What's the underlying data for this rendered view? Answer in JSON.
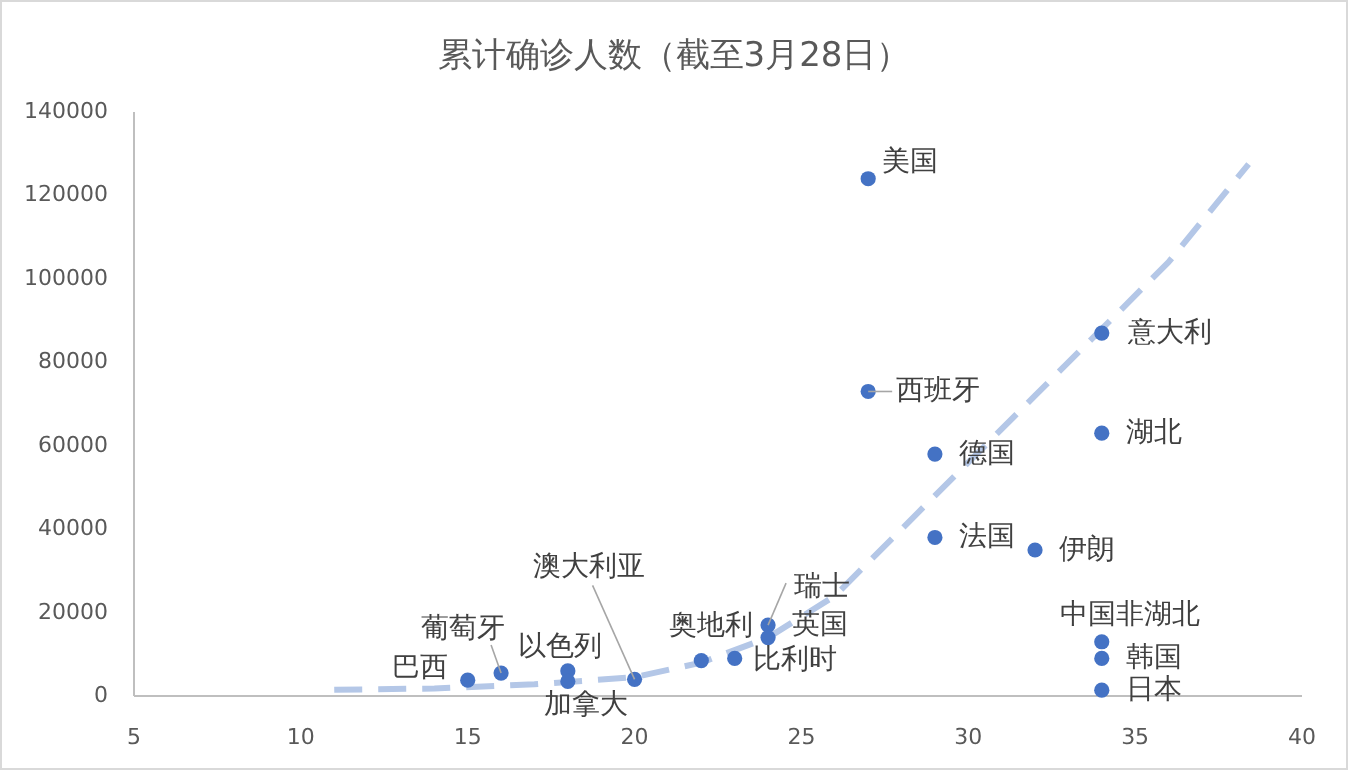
{
  "chart_data": {
    "type": "scatter",
    "title": "累计确诊人数（截至3月28日）",
    "xlim": [
      5,
      40
    ],
    "xticks": [
      5,
      10,
      15,
      20,
      25,
      30,
      35,
      40
    ],
    "ylim": [
      0,
      140000
    ],
    "yticks": [
      0,
      20000,
      40000,
      60000,
      80000,
      100000,
      120000,
      140000
    ],
    "series": [
      {
        "type": "scatter",
        "color": "#4472c4",
        "marker": "circle",
        "x": [
          27,
          27,
          29,
          29,
          32,
          34,
          34,
          34,
          34,
          34,
          24,
          24,
          23,
          22,
          20,
          18,
          18,
          16,
          15
        ],
        "values": [
          124000,
          73000,
          58000,
          38000,
          35000,
          87000,
          63000,
          13000,
          9000,
          1400,
          17000,
          14000,
          9000,
          8500,
          4000,
          6000,
          3500,
          5500,
          3800
        ]
      },
      {
        "type": "line",
        "color": "#b4c7e7",
        "line_style": "dashed",
        "x": [
          11,
          14,
          17,
          20,
          22,
          24,
          26,
          28,
          30,
          32,
          34,
          36,
          38.4
        ],
        "values": [
          1500,
          1800,
          2800,
          4500,
          8000,
          14000,
          24000,
          40000,
          56000,
          72000,
          88000,
          104000,
          127500
        ]
      }
    ],
    "annotations": [
      {
        "text": "美国",
        "x": 27,
        "y": 124000
      },
      {
        "text": "西班牙",
        "x": 27,
        "y": 73000
      },
      {
        "text": "德国",
        "x": 29,
        "y": 58000
      },
      {
        "text": "法国",
        "x": 29,
        "y": 38000
      },
      {
        "text": "伊朗",
        "x": 32,
        "y": 35000
      },
      {
        "text": "意大利",
        "x": 34,
        "y": 87000
      },
      {
        "text": "湖北",
        "x": 34,
        "y": 63000
      },
      {
        "text": "中国非湖北",
        "x": 34,
        "y": 13000
      },
      {
        "text": "韩国",
        "x": 34,
        "y": 9000
      },
      {
        "text": "日本",
        "x": 34,
        "y": 1400
      },
      {
        "text": "瑞士",
        "x": 24,
        "y": 17000
      },
      {
        "text": "英国",
        "x": 24,
        "y": 14000
      },
      {
        "text": "比利时",
        "x": 23,
        "y": 9000
      },
      {
        "text": "奥地利",
        "x": 22,
        "y": 8500
      },
      {
        "text": "澳大利亚",
        "x": 20,
        "y": 4000
      },
      {
        "text": "以色列",
        "x": 18,
        "y": 6000
      },
      {
        "text": "加拿大",
        "x": 18,
        "y": 3500
      },
      {
        "text": "葡萄牙",
        "x": 16,
        "y": 5500
      },
      {
        "text": "巴西",
        "x": 15,
        "y": 3800
      }
    ]
  }
}
